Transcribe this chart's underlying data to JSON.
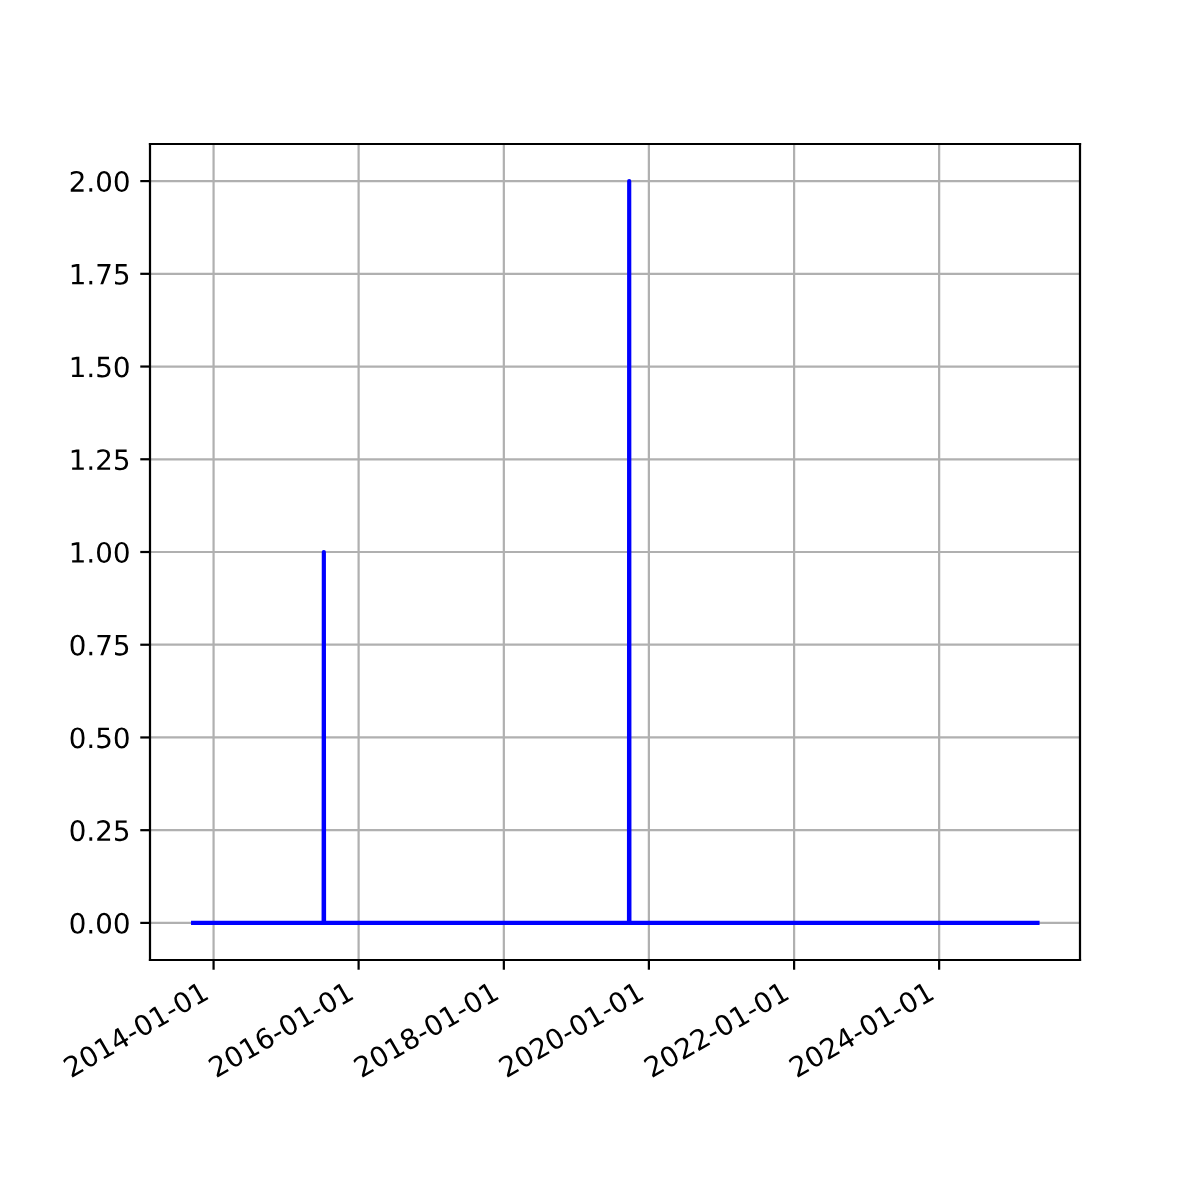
{
  "chart_data": {
    "type": "line",
    "x": [
      "2013-09-20",
      "2015-07-09",
      "2015-07-10",
      "2015-07-11",
      "2019-09-23",
      "2019-09-24",
      "2019-09-25",
      "2025-05-10"
    ],
    "series": [
      {
        "color": "#0000ff",
        "values": [
          0,
          0,
          1,
          0,
          0,
          2,
          0,
          0
        ]
      }
    ],
    "xlim": [
      "2013-02-15",
      "2025-12-10"
    ],
    "xticks": [
      "2014-01-01",
      "2016-01-01",
      "2018-01-01",
      "2020-01-01",
      "2022-01-01",
      "2024-01-01"
    ],
    "ylim": [
      -0.1,
      2.1
    ],
    "yticks": [
      {
        "value": 0,
        "label": "0.00"
      },
      {
        "value": 0.25,
        "label": "0.25"
      },
      {
        "value": 0.5,
        "label": "0.50"
      },
      {
        "value": 0.75,
        "label": "0.75"
      },
      {
        "value": 1,
        "label": "1.00"
      },
      {
        "value": 1.25,
        "label": "1.25"
      },
      {
        "value": 1.5,
        "label": "1.50"
      },
      {
        "value": 1.75,
        "label": "1.75"
      },
      {
        "value": 2,
        "label": "2.00"
      }
    ],
    "grid": true
  }
}
